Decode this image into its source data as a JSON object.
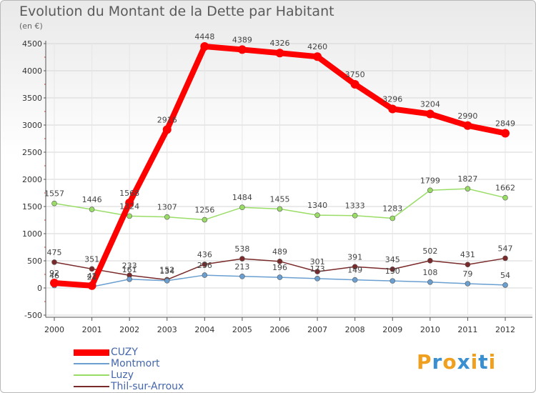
{
  "header": {
    "title": "Evolution du Montant de la Dette par Habitant",
    "unit": "(en €)"
  },
  "chart_data": {
    "type": "line",
    "title": "Evolution du Montant de la Dette par Habitant",
    "ylabel": "(en €)",
    "xlabel": "",
    "ylim": [
      -500,
      4500
    ],
    "yticks": [
      -500,
      0,
      500,
      1000,
      1500,
      2000,
      2500,
      3000,
      3500,
      4000,
      4500
    ],
    "ytick_labels": [
      "-500",
      "0",
      "500",
      "1000",
      "1500",
      "2000",
      "2500",
      "3000",
      "3500",
      "4000",
      "4500"
    ],
    "categories": [
      "2000",
      "2001",
      "2002",
      "2003",
      "2004",
      "2005",
      "2006",
      "2007",
      "2008",
      "2009",
      "2010",
      "2011",
      "2012"
    ],
    "legend_position": "bottom-left",
    "series": [
      {
        "name": "CUZY",
        "color": "#ff0000",
        "values": [
          92,
          42,
          1568,
          2916,
          4448,
          4389,
          4326,
          4260,
          3750,
          3296,
          3204,
          2990,
          2849
        ],
        "labels": [
          "92",
          "42",
          "1568",
          "2916",
          "4448",
          "4389",
          "4326",
          "4260",
          "3750",
          "3296",
          "3204",
          "2990",
          "2849"
        ]
      },
      {
        "name": "Montmort",
        "color": "#6a9fd0",
        "values": [
          46,
          21,
          161,
          134,
          236,
          213,
          196,
          173,
          149,
          130,
          108,
          79,
          54
        ],
        "labels": [
          "46",
          "21",
          "161",
          "134",
          "236",
          "213",
          "196",
          "173",
          "149",
          "130",
          "108",
          "79",
          "54"
        ]
      },
      {
        "name": "Luzy",
        "color": "#99dd66",
        "values": [
          1557,
          1446,
          1324,
          1307,
          1256,
          1484,
          1455,
          1340,
          1333,
          1283,
          1799,
          1827,
          1662
        ],
        "labels": [
          "1557",
          "1446",
          "1324",
          "1307",
          "1256",
          "1484",
          "1455",
          "1340",
          "1333",
          "1283",
          "1799",
          "1827",
          "1662"
        ]
      },
      {
        "name": "Thil-sur-Arroux",
        "color": "#7a2a2a",
        "values": [
          475,
          351,
          233,
          152,
          436,
          538,
          489,
          301,
          391,
          345,
          502,
          431,
          547
        ],
        "labels": [
          "475",
          "351",
          "233",
          "152",
          "436",
          "538",
          "489",
          "301",
          "391",
          "345",
          "502",
          "431",
          "547"
        ]
      }
    ]
  },
  "logo": {
    "text": "Proxiti",
    "letters": [
      "P",
      "r",
      "o",
      "x",
      "i",
      "t",
      "i"
    ],
    "colors": [
      "#f0a020",
      "#3a8fd0",
      "#f0a020",
      "#3a8fd0",
      "#f0a020",
      "#3a8fd0",
      "#f0a020"
    ]
  }
}
